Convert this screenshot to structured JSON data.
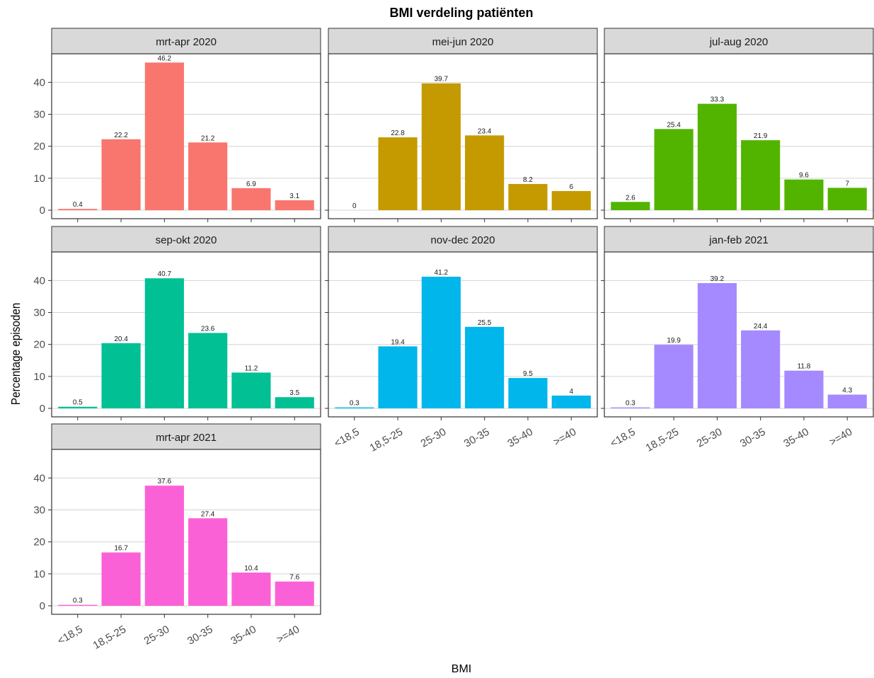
{
  "chart_data": {
    "type": "bar",
    "title": "BMI verdeling patiënten",
    "xlabel": "BMI",
    "ylabel": "Percentage episoden",
    "categories": [
      "<18,5",
      "18,5-25",
      "25-30",
      "30-35",
      "35-40",
      ">=40"
    ],
    "yticks": [
      0,
      10,
      20,
      30,
      40
    ],
    "ylim": [
      0,
      48.5
    ],
    "grid": true,
    "legend": "none",
    "panels": [
      {
        "title": "mrt-apr 2020",
        "color": "#F8766D",
        "values": [
          0.4,
          22.2,
          46.2,
          21.2,
          6.9,
          3.1
        ],
        "labels": [
          "0.4",
          "22.2",
          "46.2",
          "21.2",
          "6.9",
          "3.1"
        ]
      },
      {
        "title": "mei-jun 2020",
        "color": "#C49A00",
        "values": [
          0,
          22.8,
          39.7,
          23.4,
          8.2,
          6
        ],
        "labels": [
          "0",
          "22.8",
          "39.7",
          "23.4",
          "8.2",
          "6"
        ]
      },
      {
        "title": "jul-aug 2020",
        "color": "#53B400",
        "values": [
          2.6,
          25.4,
          33.3,
          21.9,
          9.6,
          7
        ],
        "labels": [
          "2.6",
          "25.4",
          "33.3",
          "21.9",
          "9.6",
          "7"
        ]
      },
      {
        "title": "sep-okt 2020",
        "color": "#00C094",
        "values": [
          0.5,
          20.4,
          40.7,
          23.6,
          11.2,
          3.5
        ],
        "labels": [
          "0.5",
          "20.4",
          "40.7",
          "23.6",
          "11.2",
          "3.5"
        ]
      },
      {
        "title": "nov-dec 2020",
        "color": "#00B6EB",
        "values": [
          0.3,
          19.4,
          41.2,
          25.5,
          9.5,
          4
        ],
        "labels": [
          "0.3",
          "19.4",
          "41.2",
          "25.5",
          "9.5",
          "4"
        ]
      },
      {
        "title": "jan-feb 2021",
        "color": "#A58AFF",
        "values": [
          0.3,
          19.9,
          39.2,
          24.4,
          11.8,
          4.3
        ],
        "labels": [
          "0.3",
          "19.9",
          "39.2",
          "24.4",
          "11.8",
          "4.3"
        ]
      },
      {
        "title": "mrt-apr 2021",
        "color": "#FB61D7",
        "values": [
          0.3,
          16.7,
          37.6,
          27.4,
          10.4,
          7.6
        ],
        "labels": [
          "0.3",
          "16.7",
          "37.6",
          "27.4",
          "10.4",
          "7.6"
        ]
      }
    ]
  }
}
